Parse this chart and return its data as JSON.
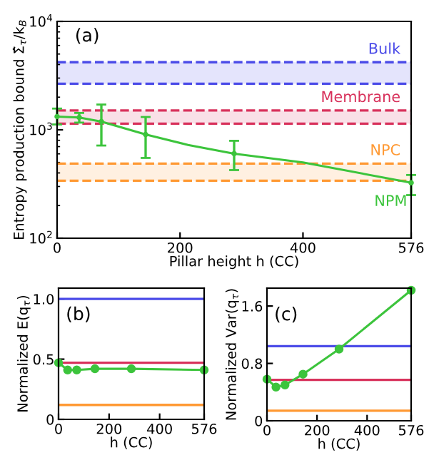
{
  "chart_data": [
    {
      "type": "line",
      "title": "(a)",
      "xlabel": "Pillar height h (CC)",
      "ylabel": "Entropy production bound Σ̂$_{τ}$/k$_{B}$",
      "log": "y",
      "xlim": [
        0,
        576
      ],
      "xticks": [
        0,
        200,
        400,
        576
      ],
      "ylim": [
        100,
        10000
      ],
      "yticks": [
        {
          "value": 100,
          "label": "10$^{2}$"
        },
        {
          "value": 1000,
          "label": "10$^{3}$"
        },
        {
          "value": 10000,
          "label": "10$^{4}$"
        }
      ],
      "grid": false,
      "legend": false,
      "ref_lines": [
        {
          "axis": "y",
          "value": 2660,
          "color": "#4b4be8",
          "line_style": "dashed"
        },
        {
          "axis": "y",
          "value": 4200,
          "color": "#4b4be8",
          "line_style": "dashed"
        },
        {
          "axis": "y",
          "value": 1140,
          "color": "#d8315b",
          "line_style": "dashed"
        },
        {
          "axis": "y",
          "value": 1510,
          "color": "#d8315b",
          "line_style": "dashed"
        },
        {
          "axis": "y",
          "value": 339,
          "color": "#ff9933",
          "line_style": "dashed"
        },
        {
          "axis": "y",
          "value": 488,
          "color": "#ff9933",
          "line_style": "dashed"
        }
      ],
      "bands": [
        {
          "axis": "y",
          "from": 2660,
          "to": 4200,
          "label": "Bulk",
          "color": "#4b4be8"
        },
        {
          "axis": "y",
          "from": 1140,
          "to": 1510,
          "label": "Membrane",
          "color": "#d8315b"
        },
        {
          "axis": "y",
          "from": 339,
          "to": 488,
          "label": "NPC",
          "color": "#ff9933"
        }
      ],
      "series": [
        {
          "type": "scatter",
          "marker": "circle",
          "color": "#3cc43c",
          "x": [
            0,
            36,
            72,
            144,
            288,
            576
          ],
          "values": [
            1325,
            1300,
            1190,
            905,
            603,
            325
          ],
          "errors": [
            [
              1120,
              1570
            ],
            [
              1165,
              1430
            ],
            [
              716,
              1710
            ],
            [
              550,
              1313
            ],
            [
              425,
              792
            ],
            [
              250,
              383
            ]
          ]
        },
        {
          "type": "line",
          "name": "NPM",
          "color": "#3cc43c",
          "x": [
            0,
            36,
            72,
            144,
            213,
            288,
            400,
            576
          ],
          "values": [
            1325,
            1300,
            1190,
            905,
            725,
            603,
            500,
            325
          ]
        }
      ]
    },
    {
      "type": "line",
      "title": "(b)",
      "xlabel": "h (CC)",
      "ylabel": "Normalized E(q$_{τ}$)",
      "xlim": [
        0,
        576
      ],
      "xticks": [
        0,
        200,
        400,
        576
      ],
      "ylim": [
        0,
        1.09
      ],
      "yticks": [
        0,
        0.5,
        {
          "value": 1.0,
          "label": "1.0"
        }
      ],
      "grid": false,
      "legend": false,
      "marker": "circle",
      "ref_lines": [
        {
          "axis": "y",
          "value": 1.0,
          "color": "#4b4be8"
        },
        {
          "axis": "y",
          "value": 0.47,
          "color": "#d8315b"
        },
        {
          "axis": "y",
          "value": 0.12,
          "color": "#ff9933"
        }
      ],
      "series": [
        {
          "color": "#3cc43c",
          "x": [
            0,
            36,
            72,
            144,
            288,
            576
          ],
          "values": [
            0.47,
            0.41,
            0.41,
            0.42,
            0.42,
            0.41
          ]
        }
      ]
    },
    {
      "type": "line",
      "title": "(c)",
      "xlabel": "h (CC)",
      "ylabel": "Normalized Var(q$_{τ}$)",
      "xlim": [
        0,
        576
      ],
      "xticks": [
        0,
        200,
        400,
        576
      ],
      "ylim": [
        0,
        1.85
      ],
      "yticks": [
        0,
        0.8,
        1.6
      ],
      "grid": false,
      "legend": false,
      "marker": "circle",
      "ref_lines": [
        {
          "axis": "y",
          "value": 1.04,
          "color": "#4b4be8"
        },
        {
          "axis": "y",
          "value": 0.57,
          "color": "#d8315b"
        },
        {
          "axis": "y",
          "value": 0.14,
          "color": "#ff9933"
        }
      ],
      "series": [
        {
          "color": "#3cc43c",
          "x": [
            0,
            36,
            72,
            144,
            288,
            576
          ],
          "values": [
            0.58,
            0.47,
            0.5,
            0.65,
            1.0,
            1.82
          ]
        }
      ]
    }
  ]
}
